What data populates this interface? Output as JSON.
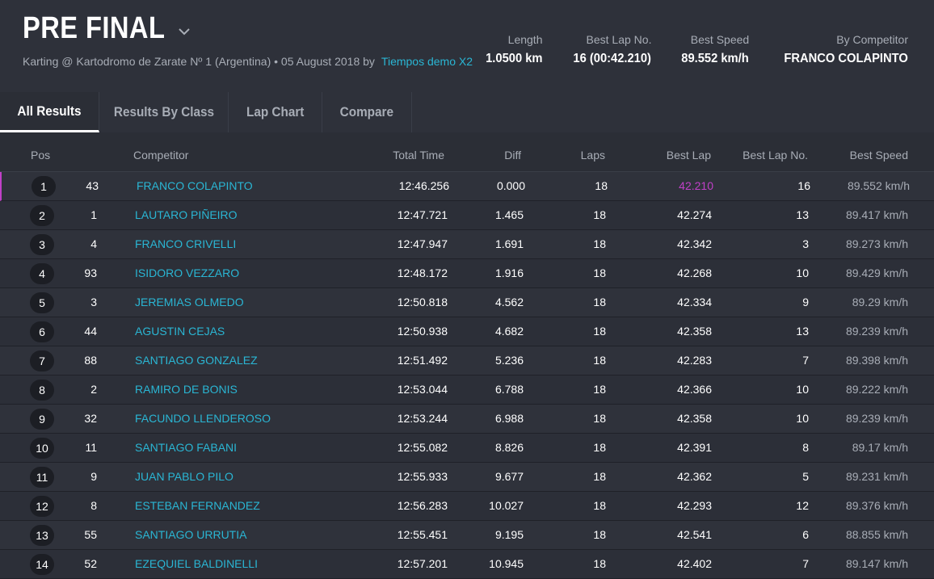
{
  "header": {
    "title": "PRE FINAL",
    "subtitle_text": "Karting @ Kartodromo de Zarate Nº 1 (Argentina) • 05 August 2018 by",
    "subtitle_link": "Tiempos demo X2",
    "stats": [
      {
        "label": "Length",
        "value": "1.0500 km"
      },
      {
        "label": "Best Lap No.",
        "value": "16 (00:42.210)"
      },
      {
        "label": "Best Speed",
        "value": "89.552 km/h"
      },
      {
        "label": "By Competitor",
        "value": "FRANCO COLAPINTO"
      }
    ]
  },
  "tabs": [
    {
      "label": "All Results",
      "active": true
    },
    {
      "label": "Results By Class",
      "active": false
    },
    {
      "label": "Lap Chart",
      "active": false
    },
    {
      "label": "Compare",
      "active": false
    }
  ],
  "columns": {
    "pos": "Pos",
    "competitor": "Competitor",
    "total_time": "Total Time",
    "diff": "Diff",
    "laps": "Laps",
    "best_lap": "Best Lap",
    "best_lap_no": "Best Lap No.",
    "best_speed": "Best Speed"
  },
  "rows": [
    {
      "pos": "1",
      "num": "43",
      "name": "FRANCO COLAPINTO",
      "total": "12:46.256",
      "diff": "0.000",
      "laps": "18",
      "best_lap": "42.210",
      "best_lap_no": "16",
      "speed": "89.552 km/h"
    },
    {
      "pos": "2",
      "num": "1",
      "name": "LAUTARO PIÑEIRO",
      "total": "12:47.721",
      "diff": "1.465",
      "laps": "18",
      "best_lap": "42.274",
      "best_lap_no": "13",
      "speed": "89.417 km/h"
    },
    {
      "pos": "3",
      "num": "4",
      "name": "FRANCO CRIVELLI",
      "total": "12:47.947",
      "diff": "1.691",
      "laps": "18",
      "best_lap": "42.342",
      "best_lap_no": "3",
      "speed": "89.273 km/h"
    },
    {
      "pos": "4",
      "num": "93",
      "name": "ISIDORO VEZZARO",
      "total": "12:48.172",
      "diff": "1.916",
      "laps": "18",
      "best_lap": "42.268",
      "best_lap_no": "10",
      "speed": "89.429 km/h"
    },
    {
      "pos": "5",
      "num": "3",
      "name": "JEREMIAS OLMEDO",
      "total": "12:50.818",
      "diff": "4.562",
      "laps": "18",
      "best_lap": "42.334",
      "best_lap_no": "9",
      "speed": "89.29 km/h"
    },
    {
      "pos": "6",
      "num": "44",
      "name": "AGUSTIN CEJAS",
      "total": "12:50.938",
      "diff": "4.682",
      "laps": "18",
      "best_lap": "42.358",
      "best_lap_no": "13",
      "speed": "89.239 km/h"
    },
    {
      "pos": "7",
      "num": "88",
      "name": "SANTIAGO GONZALEZ",
      "total": "12:51.492",
      "diff": "5.236",
      "laps": "18",
      "best_lap": "42.283",
      "best_lap_no": "7",
      "speed": "89.398 km/h"
    },
    {
      "pos": "8",
      "num": "2",
      "name": "RAMIRO DE BONIS",
      "total": "12:53.044",
      "diff": "6.788",
      "laps": "18",
      "best_lap": "42.366",
      "best_lap_no": "10",
      "speed": "89.222 km/h"
    },
    {
      "pos": "9",
      "num": "32",
      "name": "FACUNDO LLENDEROSO",
      "total": "12:53.244",
      "diff": "6.988",
      "laps": "18",
      "best_lap": "42.358",
      "best_lap_no": "10",
      "speed": "89.239 km/h"
    },
    {
      "pos": "10",
      "num": "11",
      "name": "SANTIAGO FABANI",
      "total": "12:55.082",
      "diff": "8.826",
      "laps": "18",
      "best_lap": "42.391",
      "best_lap_no": "8",
      "speed": "89.17 km/h"
    },
    {
      "pos": "11",
      "num": "9",
      "name": "JUAN PABLO PILO",
      "total": "12:55.933",
      "diff": "9.677",
      "laps": "18",
      "best_lap": "42.362",
      "best_lap_no": "5",
      "speed": "89.231 km/h"
    },
    {
      "pos": "12",
      "num": "8",
      "name": "ESTEBAN FERNANDEZ",
      "total": "12:56.283",
      "diff": "10.027",
      "laps": "18",
      "best_lap": "42.293",
      "best_lap_no": "12",
      "speed": "89.376 km/h"
    },
    {
      "pos": "13",
      "num": "55",
      "name": "SANTIAGO URRUTIA",
      "total": "12:55.451",
      "diff": "9.195",
      "laps": "18",
      "best_lap": "42.541",
      "best_lap_no": "6",
      "speed": "88.855 km/h"
    },
    {
      "pos": "14",
      "num": "52",
      "name": "EZEQUIEL BALDINELLI",
      "total": "12:57.201",
      "diff": "10.945",
      "laps": "18",
      "best_lap": "42.402",
      "best_lap_no": "7",
      "speed": "89.147 km/h"
    }
  ],
  "colors": {
    "link": "#2ab6d4",
    "best_lap_highlight": "#c040c8",
    "background": "#2b2e36"
  }
}
